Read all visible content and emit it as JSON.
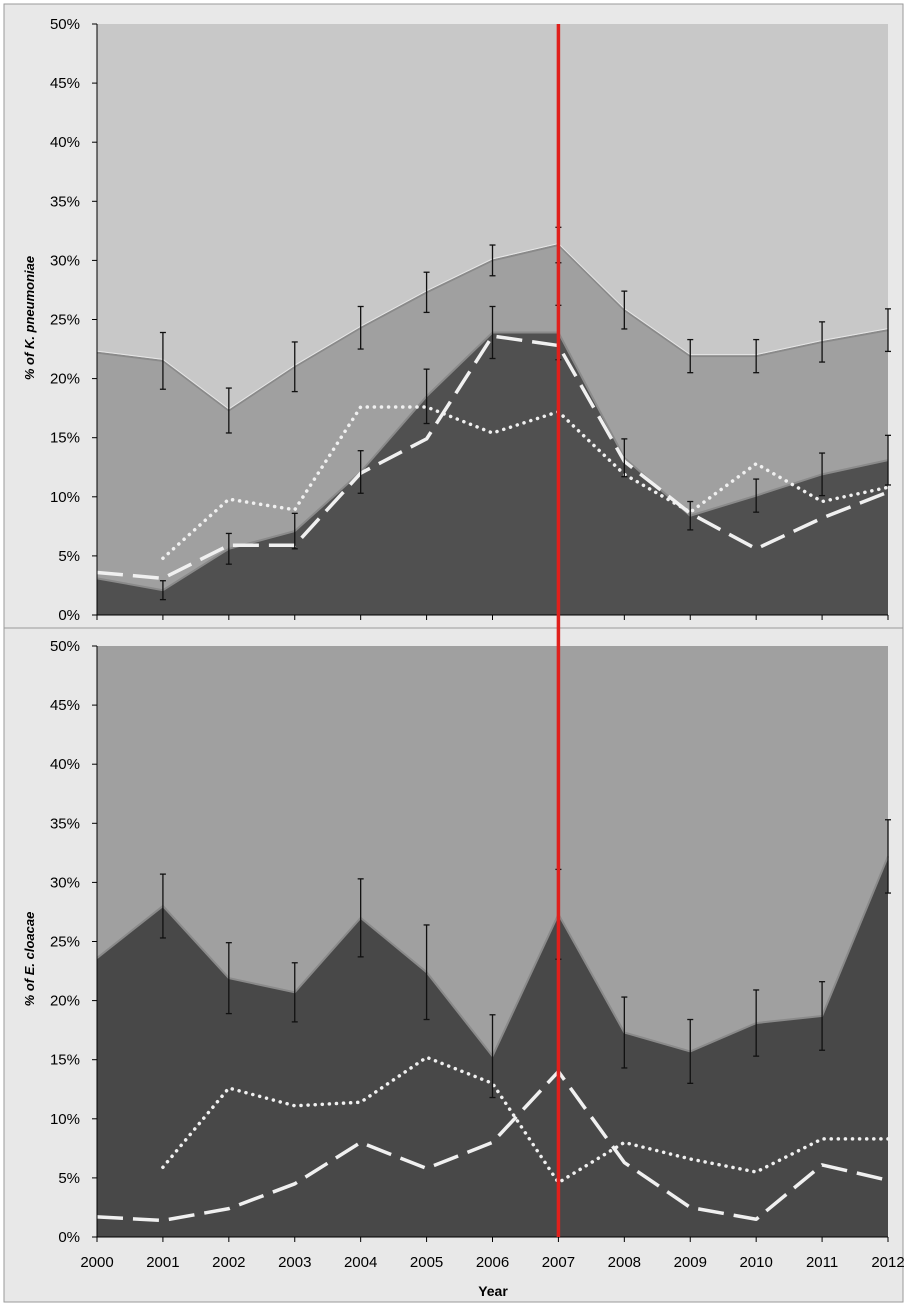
{
  "chart_data": [
    {
      "type": "area",
      "ylabel": "% of K. pneumoniae",
      "xlabel": "",
      "x": [
        2000,
        2001,
        2002,
        2003,
        2004,
        2005,
        2006,
        2007,
        2008,
        2009,
        2010,
        2011,
        2012
      ],
      "x_ticks": [
        "2000",
        "2001",
        "2002",
        "2003",
        "2004",
        "2005",
        "2006",
        "2007",
        "2008",
        "2009",
        "2010",
        "2011",
        "2012"
      ],
      "y_ticks": [
        "0%",
        "5%",
        "10%",
        "15%",
        "20%",
        "25%",
        "30%",
        "35%",
        "40%",
        "45%",
        "50%"
      ],
      "ylim": [
        0,
        50
      ],
      "grid": false,
      "areas": [
        {
          "color": "#c8c8c8",
          "top": 50
        },
        {
          "color": "#a0a0a0",
          "values": [
            22.2,
            21.5,
            17.3,
            21.0,
            24.3,
            27.3,
            30.0,
            31.3,
            25.8,
            21.9,
            21.9,
            23.1,
            24.1
          ],
          "err": [
            0,
            2.4,
            1.9,
            2.1,
            1.8,
            1.7,
            1.3,
            1.5,
            1.6,
            1.4,
            1.4,
            1.7,
            1.8
          ]
        },
        {
          "color": "#505050",
          "values": [
            3.1,
            2.1,
            5.6,
            7.1,
            12.1,
            18.5,
            23.9,
            23.9,
            13.3,
            8.4,
            10.1,
            11.9,
            13.1
          ],
          "err": [
            0,
            0.8,
            1.3,
            1.5,
            1.8,
            2.3,
            2.2,
            2.3,
            1.6,
            1.2,
            1.4,
            1.8,
            2.1
          ]
        }
      ],
      "lines": [
        {
          "style": "dotted",
          "x": [
            2001,
            2002,
            2003,
            2004,
            2005,
            2006,
            2007,
            2008,
            2009,
            2010,
            2011,
            2012
          ],
          "values": [
            4.8,
            9.8,
            8.9,
            17.6,
            17.6,
            15.4,
            17.2,
            11.9,
            8.7,
            12.8,
            9.6,
            10.8
          ]
        },
        {
          "style": "dashed",
          "x": [
            2000,
            2001,
            2002,
            2003,
            2004,
            2005,
            2006,
            2007,
            2008,
            2009,
            2010,
            2011,
            2012
          ],
          "values": [
            3.6,
            3.1,
            5.9,
            5.9,
            12.0,
            14.9,
            23.6,
            22.8,
            13.0,
            8.6,
            5.6,
            8.2,
            10.4
          ]
        }
      ]
    },
    {
      "type": "area",
      "ylabel": "% of E. cloacae",
      "xlabel": "Year",
      "x": [
        2000,
        2001,
        2002,
        2003,
        2004,
        2005,
        2006,
        2007,
        2008,
        2009,
        2010,
        2011,
        2012
      ],
      "x_ticks": [
        "2000",
        "2001",
        "2002",
        "2003",
        "2004",
        "2005",
        "2006",
        "2007",
        "2008",
        "2009",
        "2010",
        "2011",
        "2012"
      ],
      "y_ticks": [
        "0%",
        "5%",
        "10%",
        "15%",
        "20%",
        "25%",
        "30%",
        "35%",
        "40%",
        "45%",
        "50%"
      ],
      "ylim": [
        0,
        50
      ],
      "grid": false,
      "areas": [
        {
          "color": "#a0a0a0",
          "top": 50
        },
        {
          "color": "#484848",
          "values": [
            23.6,
            28.0,
            21.9,
            20.7,
            27.0,
            22.4,
            15.3,
            27.3,
            17.3,
            15.7,
            18.1,
            18.7,
            32.2
          ],
          "err": [
            0,
            2.7,
            3.0,
            2.5,
            3.3,
            4.0,
            3.5,
            3.8,
            3.0,
            2.7,
            2.8,
            2.9,
            3.1
          ]
        }
      ],
      "lines": [
        {
          "style": "dotted",
          "x": [
            2001,
            2002,
            2003,
            2004,
            2005,
            2006,
            2007,
            2008,
            2009,
            2010,
            2011,
            2012
          ],
          "values": [
            5.9,
            12.6,
            11.1,
            11.4,
            15.2,
            13.0,
            4.6,
            8.0,
            6.6,
            5.5,
            8.3,
            8.3
          ]
        },
        {
          "style": "dashed",
          "x": [
            2000,
            2001,
            2002,
            2003,
            2004,
            2005,
            2006,
            2007,
            2008,
            2009,
            2010,
            2011,
            2012
          ],
          "values": [
            1.7,
            1.4,
            2.4,
            4.5,
            8.0,
            5.8,
            8.0,
            14.0,
            6.3,
            2.5,
            1.5,
            6.1,
            4.8
          ]
        }
      ]
    }
  ],
  "reference_line": {
    "x": 2007,
    "color": "#e0201c"
  },
  "colors": {
    "outer_frame": "#e8e8e8",
    "frame_border": "#9a9a9a"
  }
}
